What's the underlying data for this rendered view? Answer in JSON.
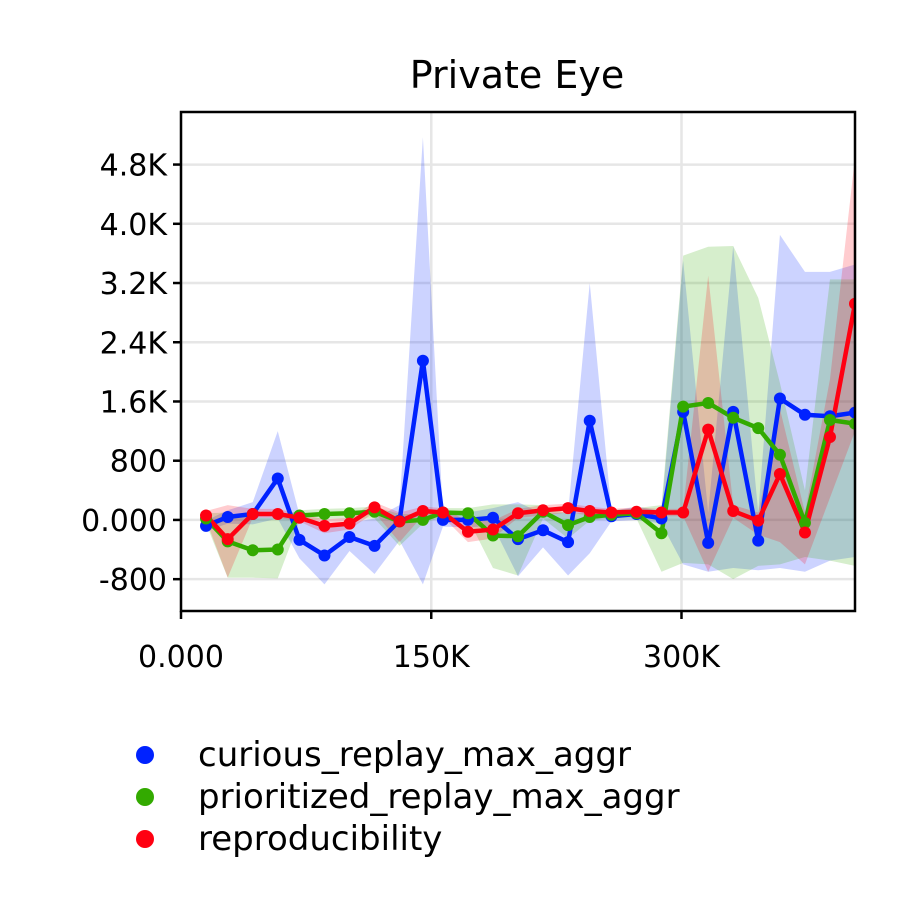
{
  "chart_data": {
    "type": "line",
    "title": "Private Eye",
    "xlabel": "",
    "ylabel": "",
    "xlim": [
      0,
      404000
    ],
    "ylim": [
      -1230,
      5510
    ],
    "xticks": [
      0,
      150000,
      300000
    ],
    "xtick_labels": [
      "0.000",
      "150K",
      "300K"
    ],
    "yticks": [
      -800,
      0,
      800,
      1600,
      2400,
      3200,
      4000,
      4800
    ],
    "ytick_labels": [
      "-800",
      "0.000",
      "800",
      "1.6K",
      "2.4K",
      "3.2K",
      "4.0K",
      "4.8K"
    ],
    "grid": true,
    "legend_position": "below",
    "series": [
      {
        "name": "curious_replay_max_aggr",
        "color": "#0022ff",
        "x": [
          15000,
          28000,
          43000,
          58000,
          71000,
          86000,
          101000,
          116000,
          131000,
          145000,
          157000,
          172000,
          187000,
          202000,
          217000,
          232000,
          245000,
          258000,
          273000,
          288000,
          301000,
          316000,
          331000,
          346000,
          359000,
          374000,
          389000,
          404000
        ],
        "y": [
          -80,
          40,
          80,
          560,
          -270,
          -480,
          -230,
          -350,
          -10,
          2150,
          0,
          0,
          30,
          -260,
          -140,
          -300,
          1340,
          50,
          80,
          20,
          1460,
          -310,
          1460,
          -280,
          1640,
          1420,
          1400,
          1450
        ],
        "band_low": [
          -150,
          -50,
          -60,
          20,
          -520,
          -870,
          -420,
          -730,
          -280,
          -870,
          -90,
          -100,
          -80,
          -760,
          -370,
          -750,
          -450,
          -20,
          0,
          -50,
          -600,
          -700,
          -650,
          -680,
          -650,
          -700,
          -550,
          -500
        ],
        "band_high": [
          -10,
          130,
          240,
          1200,
          70,
          -130,
          -40,
          20,
          200,
          5170,
          90,
          100,
          160,
          240,
          80,
          100,
          3200,
          120,
          180,
          120,
          3500,
          100,
          3700,
          100,
          3850,
          3350,
          3350,
          3450
        ]
      },
      {
        "name": "prioritized_replay_max_aggr",
        "color": "#33aa00",
        "x": [
          15000,
          28000,
          43000,
          58000,
          71000,
          86000,
          101000,
          116000,
          131000,
          145000,
          157000,
          172000,
          187000,
          202000,
          217000,
          232000,
          245000,
          258000,
          273000,
          288000,
          301000,
          316000,
          331000,
          346000,
          359000,
          374000,
          389000,
          404000
        ],
        "y": [
          20,
          -290,
          -410,
          -400,
          60,
          80,
          90,
          110,
          -20,
          0,
          100,
          90,
          -210,
          -220,
          110,
          -70,
          40,
          70,
          90,
          -180,
          1530,
          1580,
          1380,
          1240,
          880,
          -40,
          1350,
          1300
        ],
        "band_low": [
          -50,
          -780,
          -780,
          -790,
          -20,
          20,
          20,
          20,
          -350,
          -50,
          40,
          20,
          -650,
          -750,
          20,
          -250,
          -10,
          20,
          20,
          -700,
          -580,
          -600,
          -800,
          -620,
          -600,
          -500,
          -550,
          -620
        ],
        "band_high": [
          90,
          100,
          30,
          30,
          130,
          150,
          160,
          180,
          80,
          80,
          160,
          160,
          210,
          210,
          200,
          80,
          100,
          130,
          160,
          200,
          3570,
          3690,
          3700,
          3000,
          1850,
          400,
          3250,
          3250
        ]
      },
      {
        "name": "reproducibility",
        "color": "#ff0011",
        "x": [
          15000,
          28000,
          43000,
          58000,
          71000,
          86000,
          101000,
          116000,
          131000,
          145000,
          157000,
          172000,
          187000,
          202000,
          217000,
          232000,
          245000,
          258000,
          273000,
          288000,
          301000,
          316000,
          331000,
          346000,
          359000,
          374000,
          389000,
          404000
        ],
        "y": [
          60,
          -260,
          80,
          80,
          30,
          -80,
          -50,
          170,
          -20,
          120,
          100,
          -160,
          -130,
          90,
          130,
          160,
          120,
          100,
          110,
          100,
          100,
          1220,
          120,
          -10,
          620,
          -170,
          1120,
          2920
        ],
        "band_low": [
          0,
          -780,
          30,
          30,
          -20,
          -180,
          -130,
          100,
          -300,
          60,
          40,
          -300,
          -250,
          30,
          60,
          100,
          60,
          50,
          50,
          50,
          50,
          -700,
          30,
          -200,
          -300,
          -600,
          300,
          1200
        ],
        "band_high": [
          120,
          200,
          150,
          150,
          80,
          10,
          30,
          240,
          100,
          180,
          160,
          -20,
          -10,
          150,
          200,
          220,
          180,
          150,
          170,
          150,
          150,
          3300,
          200,
          100,
          1500,
          100,
          1900,
          4900
        ]
      }
    ]
  }
}
